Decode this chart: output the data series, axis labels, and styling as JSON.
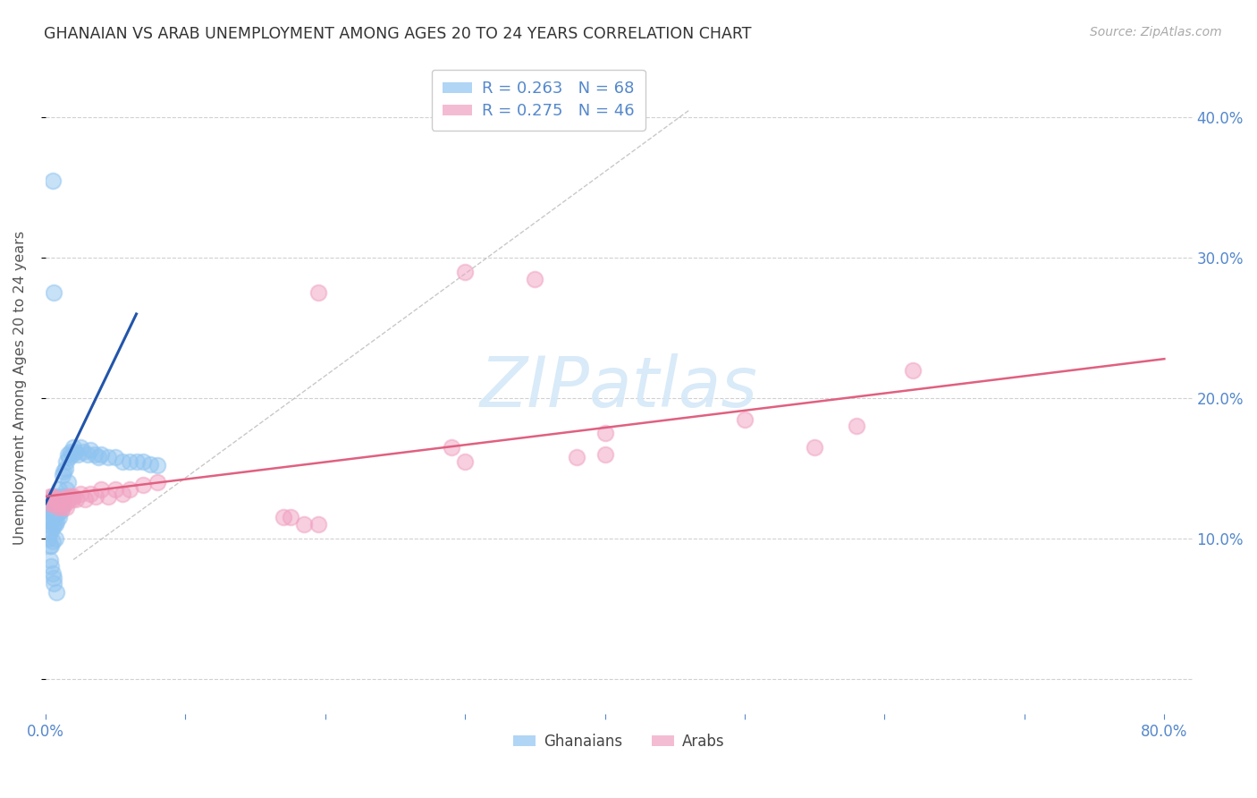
{
  "title": "GHANAIAN VS ARAB UNEMPLOYMENT AMONG AGES 20 TO 24 YEARS CORRELATION CHART",
  "source": "Source: ZipAtlas.com",
  "ylabel": "Unemployment Among Ages 20 to 24 years",
  "xlim": [
    0.0,
    0.82
  ],
  "ylim": [
    -0.025,
    0.44
  ],
  "ghanaian_color": "#90c4f0",
  "arab_color": "#f0a0c0",
  "blue_line_color": "#2255aa",
  "pink_line_color": "#e06080",
  "tick_color": "#5588cc",
  "grid_color": "#cccccc",
  "watermark_color": "#d5e8f8",
  "title_color": "#333333",
  "source_color": "#aaaaaa",
  "axis_label_color": "#555555",
  "R_gh": "0.263",
  "N_gh": "68",
  "R_ar": "0.275",
  "N_ar": "46",
  "gh_x": [
    0.002,
    0.002,
    0.003,
    0.003,
    0.003,
    0.004,
    0.004,
    0.004,
    0.004,
    0.005,
    0.005,
    0.005,
    0.005,
    0.005,
    0.006,
    0.006,
    0.006,
    0.006,
    0.007,
    0.007,
    0.007,
    0.007,
    0.008,
    0.008,
    0.008,
    0.009,
    0.009,
    0.01,
    0.01,
    0.01,
    0.011,
    0.011,
    0.012,
    0.012,
    0.013,
    0.013,
    0.014,
    0.015,
    0.015,
    0.016,
    0.016,
    0.017,
    0.018,
    0.019,
    0.02,
    0.021,
    0.023,
    0.025,
    0.027,
    0.03,
    0.032,
    0.035,
    0.038,
    0.04,
    0.045,
    0.05,
    0.055,
    0.06,
    0.065,
    0.07,
    0.075,
    0.08,
    0.003,
    0.004,
    0.005,
    0.006,
    0.006,
    0.008
  ],
  "gh_y": [
    0.12,
    0.1,
    0.115,
    0.105,
    0.095,
    0.12,
    0.112,
    0.105,
    0.095,
    0.355,
    0.125,
    0.115,
    0.108,
    0.098,
    0.275,
    0.13,
    0.12,
    0.11,
    0.125,
    0.118,
    0.11,
    0.1,
    0.13,
    0.122,
    0.112,
    0.128,
    0.118,
    0.135,
    0.125,
    0.115,
    0.13,
    0.12,
    0.145,
    0.125,
    0.148,
    0.13,
    0.15,
    0.155,
    0.135,
    0.16,
    0.14,
    0.158,
    0.162,
    0.16,
    0.165,
    0.162,
    0.16,
    0.165,
    0.162,
    0.16,
    0.163,
    0.16,
    0.158,
    0.16,
    0.158,
    0.158,
    0.155,
    0.155,
    0.155,
    0.155,
    0.153,
    0.152,
    0.085,
    0.08,
    0.075,
    0.072,
    0.068,
    0.062
  ],
  "ar_x": [
    0.003,
    0.004,
    0.005,
    0.006,
    0.007,
    0.008,
    0.009,
    0.01,
    0.011,
    0.012,
    0.013,
    0.014,
    0.015,
    0.016,
    0.017,
    0.018,
    0.019,
    0.02,
    0.022,
    0.025,
    0.028,
    0.032,
    0.036,
    0.04,
    0.045,
    0.05,
    0.055,
    0.06,
    0.07,
    0.08,
    0.3,
    0.35,
    0.195,
    0.4,
    0.5,
    0.58,
    0.62,
    0.29,
    0.38,
    0.55,
    0.17,
    0.175,
    0.185,
    0.195,
    0.3,
    0.4
  ],
  "ar_y": [
    0.13,
    0.125,
    0.13,
    0.125,
    0.128,
    0.125,
    0.122,
    0.128,
    0.125,
    0.122,
    0.128,
    0.125,
    0.122,
    0.13,
    0.128,
    0.13,
    0.128,
    0.13,
    0.128,
    0.132,
    0.128,
    0.132,
    0.13,
    0.135,
    0.13,
    0.135,
    0.132,
    0.135,
    0.138,
    0.14,
    0.29,
    0.285,
    0.275,
    0.175,
    0.185,
    0.18,
    0.22,
    0.165,
    0.158,
    0.165,
    0.115,
    0.115,
    0.11,
    0.11,
    0.155,
    0.16
  ],
  "gh_line_x": [
    0.0,
    0.065
  ],
  "gh_line_y": [
    0.125,
    0.26
  ],
  "ar_line_x": [
    0.0,
    0.8
  ],
  "ar_line_y": [
    0.13,
    0.228
  ],
  "gray_line_x": [
    0.02,
    0.46
  ],
  "gray_line_y": [
    0.085,
    0.405
  ]
}
